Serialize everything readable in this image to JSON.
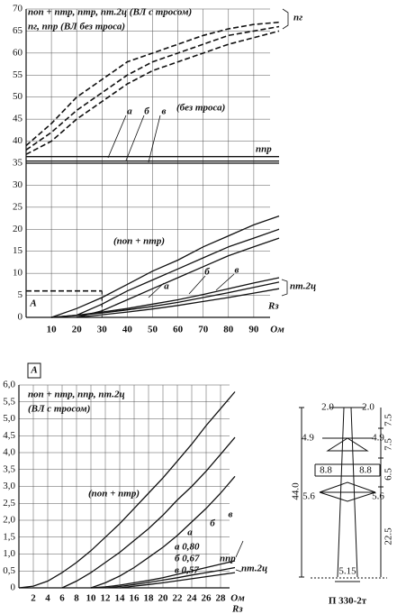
{
  "chart_data": [
    {
      "type": "line",
      "annotations": [
        "nоп + nтр, nтр, nт.2ц (ВЛ с тросом)",
        "nг, nпр (ВЛ без троса)",
        "nг",
        "а",
        "б",
        "в",
        "(без троса)",
        "nпр",
        "(nоп + nтр)",
        "а",
        "б",
        "в",
        "nт.2ц",
        "A",
        "Rз",
        "Ом"
      ],
      "x": [
        0,
        10,
        20,
        30,
        40,
        50,
        60,
        70,
        80,
        90,
        100
      ],
      "series": [
        {
          "color": "#111",
          "dashed": true,
          "values": [
            39,
            44,
            50,
            54,
            58,
            60,
            62,
            64,
            65.5,
            66.5,
            67
          ]
        },
        {
          "color": "#111",
          "dashed": true,
          "values": [
            38,
            42,
            47,
            51,
            55,
            58,
            60,
            62,
            64,
            65,
            66
          ]
        },
        {
          "color": "#111",
          "dashed": true,
          "values": [
            37,
            40,
            45,
            49,
            53,
            56,
            58,
            60,
            62,
            63.5,
            65
          ]
        },
        {
          "color": "#111",
          "dashed": false,
          "values": [
            36.5,
            36.5,
            36.5,
            36.5,
            36.5,
            36.5,
            36.5,
            36.5,
            36.5,
            36.5,
            36.5
          ]
        },
        {
          "color": "#111",
          "dashed": false,
          "values": [
            35.5,
            35.5,
            35.5,
            35.5,
            35.5,
            35.5,
            35.5,
            35.5,
            35.5,
            35.5,
            35.5
          ]
        },
        {
          "color": "#111",
          "dashed": false,
          "values": [
            35,
            35,
            35,
            35,
            35,
            35,
            35,
            35,
            35,
            35,
            35
          ]
        },
        {
          "color": "#111",
          "dashed": false,
          "values": [
            null,
            0,
            2,
            4.5,
            7.5,
            10.5,
            13,
            16,
            18.5,
            21,
            23
          ]
        },
        {
          "color": "#111",
          "dashed": false,
          "values": [
            null,
            0,
            0.5,
            3,
            6,
            8.5,
            11,
            13.5,
            16,
            18,
            20
          ]
        },
        {
          "color": "#111",
          "dashed": false,
          "values": [
            null,
            null,
            0,
            1.5,
            4,
            6.5,
            9,
            11.5,
            14,
            16,
            18
          ]
        },
        {
          "color": "#111",
          "dashed": false,
          "values": [
            null,
            0,
            0.5,
            1.2,
            2,
            3,
            4,
            5.2,
            6.5,
            7.8,
            9
          ]
        },
        {
          "color": "#111",
          "dashed": false,
          "values": [
            null,
            0,
            0.4,
            1,
            1.7,
            2.5,
            3.4,
            4.5,
            5.6,
            6.8,
            8
          ]
        },
        {
          "color": "#111",
          "dashed": false,
          "values": [
            null,
            null,
            0,
            0.6,
            1.2,
            1.9,
            2.7,
            3.6,
            4.5,
            5.5,
            6.5
          ]
        }
      ],
      "zoom_box": {
        "x": 30,
        "y": 6
      },
      "xlim": [
        0,
        100
      ],
      "ylim": [
        0,
        70
      ],
      "xticks": [
        10,
        20,
        30,
        40,
        50,
        60,
        70,
        80,
        90
      ],
      "yticks": [
        0,
        5,
        10,
        15,
        20,
        25,
        30,
        35,
        40,
        45,
        50,
        55,
        60,
        65,
        70
      ],
      "grid": true
    },
    {
      "type": "line",
      "annotations": [
        "A",
        "nоп + nтр, nпр, nт.2ц",
        "(ВЛ с тросом)",
        "(nоп + nтр)",
        "а",
        "б",
        "в",
        "а 0,80",
        "б 0,67",
        "в 0,57",
        "nпр",
        "nт.2ц",
        "Rз",
        "Ом"
      ],
      "x": [
        0,
        2,
        4,
        6,
        8,
        10,
        12,
        14,
        16,
        18,
        20,
        22,
        24,
        26,
        28,
        30
      ],
      "series": [
        {
          "color": "#111",
          "dashed": false,
          "values": [
            0,
            0.05,
            0.2,
            0.45,
            0.75,
            1.1,
            1.5,
            1.9,
            2.35,
            2.8,
            3.25,
            3.75,
            4.25,
            4.8,
            5.3,
            5.8
          ]
        },
        {
          "color": "#111",
          "dashed": false,
          "values": [
            null,
            null,
            null,
            0,
            0.2,
            0.45,
            0.75,
            1.05,
            1.4,
            1.75,
            2.15,
            2.6,
            3.0,
            3.45,
            3.95,
            4.45
          ]
        },
        {
          "color": "#111",
          "dashed": false,
          "values": [
            null,
            null,
            null,
            null,
            null,
            0,
            0.15,
            0.35,
            0.6,
            0.9,
            1.2,
            1.55,
            1.95,
            2.35,
            2.8,
            3.3
          ]
        },
        {
          "color": "#111",
          "dashed": false,
          "values": [
            null,
            null,
            null,
            null,
            null,
            0,
            0.03,
            0.08,
            0.15,
            0.22,
            0.3,
            0.4,
            0.5,
            0.6,
            0.7,
            0.8
          ]
        },
        {
          "color": "#111",
          "dashed": false,
          "values": [
            null,
            null,
            null,
            null,
            null,
            null,
            0,
            0.04,
            0.1,
            0.16,
            0.23,
            0.3,
            0.38,
            0.45,
            0.52,
            0.6
          ]
        },
        {
          "color": "#111",
          "dashed": false,
          "values": [
            null,
            null,
            null,
            null,
            null,
            null,
            null,
            0,
            0.05,
            0.1,
            0.15,
            0.21,
            0.27,
            0.33,
            0.39,
            0.45
          ]
        }
      ],
      "xlim": [
        0,
        30
      ],
      "ylim": [
        0,
        6
      ],
      "xticks": [
        2,
        4,
        6,
        8,
        10,
        12,
        14,
        16,
        18,
        20,
        22,
        24,
        26,
        28
      ],
      "yticks": [
        0,
        {
          "value": 0.5,
          "label": "0,5"
        },
        {
          "value": 1,
          "label": "1,0"
        },
        {
          "value": 1.5,
          "label": "1,5"
        },
        {
          "value": 2,
          "label": "2,0"
        },
        {
          "value": 2.5,
          "label": "2,5"
        },
        {
          "value": 3,
          "label": "3,0"
        },
        {
          "value": 3.5,
          "label": "3,5"
        },
        {
          "value": 4,
          "label": "4,0"
        },
        {
          "value": 4.5,
          "label": "4,5"
        },
        {
          "value": 5,
          "label": "5,0"
        },
        {
          "value": 5.5,
          "label": "5,5"
        },
        {
          "value": 6,
          "label": "6,0"
        }
      ],
      "grid": true
    }
  ],
  "tower": {
    "title": "П 330-2т",
    "dimensions": [
      "2.0",
      "2.0",
      "7.5",
      "4.9",
      "4.9",
      "7.5",
      "8.8",
      "8.8",
      "6.5",
      "5.6",
      "5.6",
      "22.5",
      "44.0",
      "5.15"
    ]
  }
}
